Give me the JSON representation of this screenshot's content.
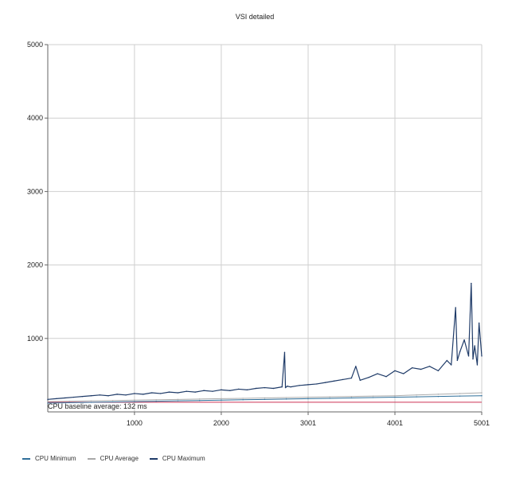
{
  "chart_data": {
    "type": "line",
    "title": "VSI detailed",
    "xlabel": "",
    "ylabel": "",
    "xlim": [
      1,
      5001
    ],
    "ylim": [
      0,
      5000
    ],
    "x_ticks": [
      {
        "value": 1000,
        "label": "1000"
      },
      {
        "value": 2000,
        "label": "2000"
      },
      {
        "value": 3001,
        "label": "3001"
      },
      {
        "value": 4001,
        "label": "4001"
      },
      {
        "value": 5001,
        "label": "5001"
      }
    ],
    "y_ticks": [
      1000,
      2000,
      3000,
      4000,
      5000
    ],
    "grid": true,
    "legend_position": "bottom-left",
    "baseline": {
      "value": 132,
      "label": "CPU baseline average: 132 ms",
      "color": "#cc3355"
    },
    "series": [
      {
        "name": "CPU Minimum",
        "color": "#2f6f9a",
        "x": [
          1,
          250,
          500,
          750,
          1000,
          1250,
          1500,
          1750,
          2000,
          2250,
          2500,
          2750,
          3000,
          3250,
          3500,
          3750,
          4000,
          4250,
          4500,
          4750,
          5001
        ],
        "values": [
          120,
          125,
          130,
          135,
          140,
          145,
          150,
          155,
          160,
          165,
          170,
          175,
          180,
          185,
          190,
          195,
          200,
          205,
          210,
          215,
          220
        ]
      },
      {
        "name": "CPU Average",
        "color": "#a8a8a8",
        "x": [
          1,
          250,
          500,
          750,
          1000,
          1250,
          1500,
          1750,
          2000,
          2250,
          2500,
          2750,
          3000,
          3250,
          3500,
          3750,
          4000,
          4250,
          4500,
          4750,
          5001
        ],
        "values": [
          140,
          145,
          150,
          155,
          160,
          165,
          170,
          175,
          180,
          185,
          190,
          195,
          200,
          205,
          210,
          215,
          220,
          230,
          240,
          250,
          260
        ]
      },
      {
        "name": "CPU Maximum",
        "color": "#1f3b68",
        "x": [
          1,
          100,
          200,
          300,
          400,
          500,
          600,
          700,
          800,
          900,
          1000,
          1100,
          1200,
          1300,
          1400,
          1500,
          1600,
          1700,
          1800,
          1900,
          2000,
          2100,
          2200,
          2300,
          2400,
          2500,
          2600,
          2700,
          2730,
          2740,
          2760,
          2800,
          2900,
          3000,
          3100,
          3200,
          3300,
          3400,
          3500,
          3550,
          3600,
          3700,
          3800,
          3900,
          4000,
          4100,
          4200,
          4300,
          4400,
          4500,
          4600,
          4650,
          4700,
          4720,
          4750,
          4800,
          4850,
          4880,
          4900,
          4920,
          4950,
          4970,
          5001
        ],
        "values": [
          170,
          180,
          190,
          200,
          210,
          220,
          230,
          220,
          240,
          230,
          250,
          240,
          260,
          250,
          270,
          260,
          280,
          270,
          290,
          280,
          300,
          290,
          310,
          300,
          320,
          330,
          320,
          340,
          810,
          330,
          350,
          340,
          360,
          370,
          380,
          400,
          420,
          440,
          460,
          620,
          430,
          470,
          520,
          480,
          560,
          520,
          600,
          580,
          620,
          560,
          700,
          640,
          1420,
          700,
          820,
          980,
          760,
          1750,
          720,
          900,
          640,
          1210,
          760
        ]
      }
    ]
  }
}
